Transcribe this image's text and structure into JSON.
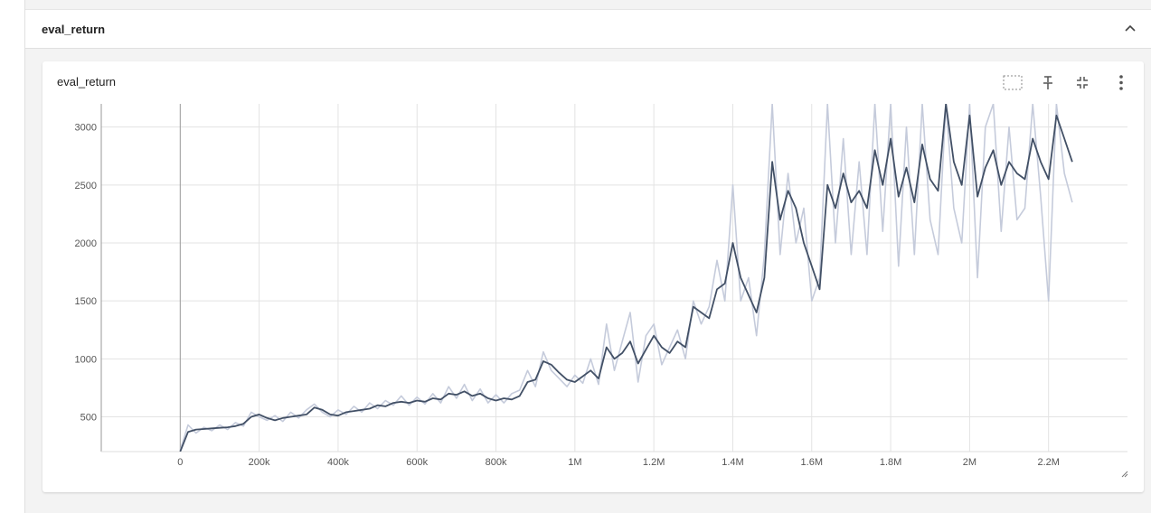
{
  "section": {
    "title": "eval_return"
  },
  "chart_data": {
    "type": "line",
    "title": "eval_return",
    "x": [
      0,
      20000,
      40000,
      60000,
      80000,
      100000,
      120000,
      140000,
      160000,
      180000,
      200000,
      220000,
      240000,
      260000,
      280000,
      300000,
      320000,
      340000,
      360000,
      380000,
      400000,
      420000,
      440000,
      460000,
      480000,
      500000,
      520000,
      540000,
      560000,
      580000,
      600000,
      620000,
      640000,
      660000,
      680000,
      700000,
      720000,
      740000,
      760000,
      780000,
      800000,
      820000,
      840000,
      860000,
      880000,
      900000,
      920000,
      940000,
      960000,
      980000,
      1000000,
      1020000,
      1040000,
      1060000,
      1080000,
      1100000,
      1120000,
      1140000,
      1160000,
      1180000,
      1200000,
      1220000,
      1240000,
      1260000,
      1280000,
      1300000,
      1320000,
      1340000,
      1360000,
      1380000,
      1400000,
      1420000,
      1440000,
      1460000,
      1480000,
      1500000,
      1520000,
      1540000,
      1560000,
      1580000,
      1600000,
      1620000,
      1640000,
      1660000,
      1680000,
      1700000,
      1720000,
      1740000,
      1760000,
      1780000,
      1800000,
      1820000,
      1840000,
      1860000,
      1880000,
      1900000,
      1920000,
      1940000,
      1960000,
      1980000,
      2000000,
      2020000,
      2040000,
      2060000,
      2080000,
      2100000,
      2120000,
      2140000,
      2160000,
      2180000,
      2200000,
      2220000,
      2240000,
      2260000
    ],
    "series": [
      {
        "color": "#c5cbdb",
        "values": [
          210,
          430,
          360,
          410,
          380,
          430,
          390,
          450,
          420,
          540,
          500,
          470,
          510,
          460,
          540,
          490,
          560,
          610,
          540,
          500,
          560,
          520,
          590,
          540,
          620,
          570,
          640,
          600,
          680,
          600,
          670,
          610,
          700,
          620,
          760,
          660,
          780,
          640,
          740,
          620,
          690,
          620,
          700,
          730,
          900,
          760,
          1060,
          900,
          830,
          760,
          860,
          790,
          1000,
          780,
          1300,
          900,
          1150,
          1400,
          800,
          1200,
          1300,
          950,
          1100,
          1250,
          1000,
          1500,
          1300,
          1450,
          1850,
          1500,
          2500,
          1500,
          1700,
          1200,
          1900,
          3200,
          1900,
          2600,
          2000,
          2300,
          1500,
          1700,
          3200,
          2000,
          2900,
          1900,
          2700,
          1900,
          3200,
          2100,
          3200,
          1800,
          3000,
          1900,
          3200,
          2200,
          1900,
          3200,
          2300,
          2000,
          3200,
          1700,
          3000,
          3200,
          2100,
          3000,
          2200,
          2300,
          3200,
          2400,
          1500,
          3200,
          2600,
          2350
        ]
      },
      {
        "color": "#425066",
        "values": [
          200,
          370,
          390,
          395,
          400,
          405,
          410,
          420,
          440,
          500,
          520,
          490,
          470,
          490,
          500,
          510,
          520,
          580,
          560,
          520,
          510,
          540,
          550,
          560,
          570,
          600,
          590,
          620,
          630,
          620,
          640,
          630,
          660,
          650,
          700,
          690,
          720,
          680,
          700,
          660,
          640,
          660,
          650,
          680,
          800,
          820,
          980,
          950,
          880,
          820,
          800,
          850,
          900,
          830,
          1100,
          1000,
          1050,
          1150,
          960,
          1080,
          1200,
          1100,
          1050,
          1150,
          1100,
          1450,
          1400,
          1350,
          1600,
          1650,
          2000,
          1700,
          1550,
          1400,
          1700,
          2700,
          2200,
          2450,
          2300,
          2000,
          1800,
          1600,
          2500,
          2300,
          2600,
          2350,
          2450,
          2300,
          2800,
          2500,
          2900,
          2400,
          2650,
          2350,
          2850,
          2550,
          2450,
          3200,
          2700,
          2500,
          3100,
          2400,
          2650,
          2800,
          2500,
          2700,
          2600,
          2550,
          2900,
          2700,
          2550,
          3100,
          2900,
          2700
        ]
      }
    ],
    "xlim": [
      -200000,
      2400000
    ],
    "xticks": [
      0,
      {
        "value": 200000,
        "label": "200k"
      },
      {
        "value": 400000,
        "label": "400k"
      },
      {
        "value": 600000,
        "label": "600k"
      },
      {
        "value": 800000,
        "label": "800k"
      },
      {
        "value": 1000000,
        "label": "1M"
      },
      {
        "value": 1200000,
        "label": "1.2M"
      },
      {
        "value": 1400000,
        "label": "1.4M"
      },
      {
        "value": 1600000,
        "label": "1.6M"
      },
      {
        "value": 1800000,
        "label": "1.8M"
      },
      {
        "value": 2000000,
        "label": "2M"
      },
      {
        "value": 2200000,
        "label": "2.2M"
      }
    ],
    "ylim": [
      200,
      3200
    ],
    "yticks": [
      500,
      1000,
      1500,
      2000,
      2500,
      3000
    ],
    "grid": true
  }
}
